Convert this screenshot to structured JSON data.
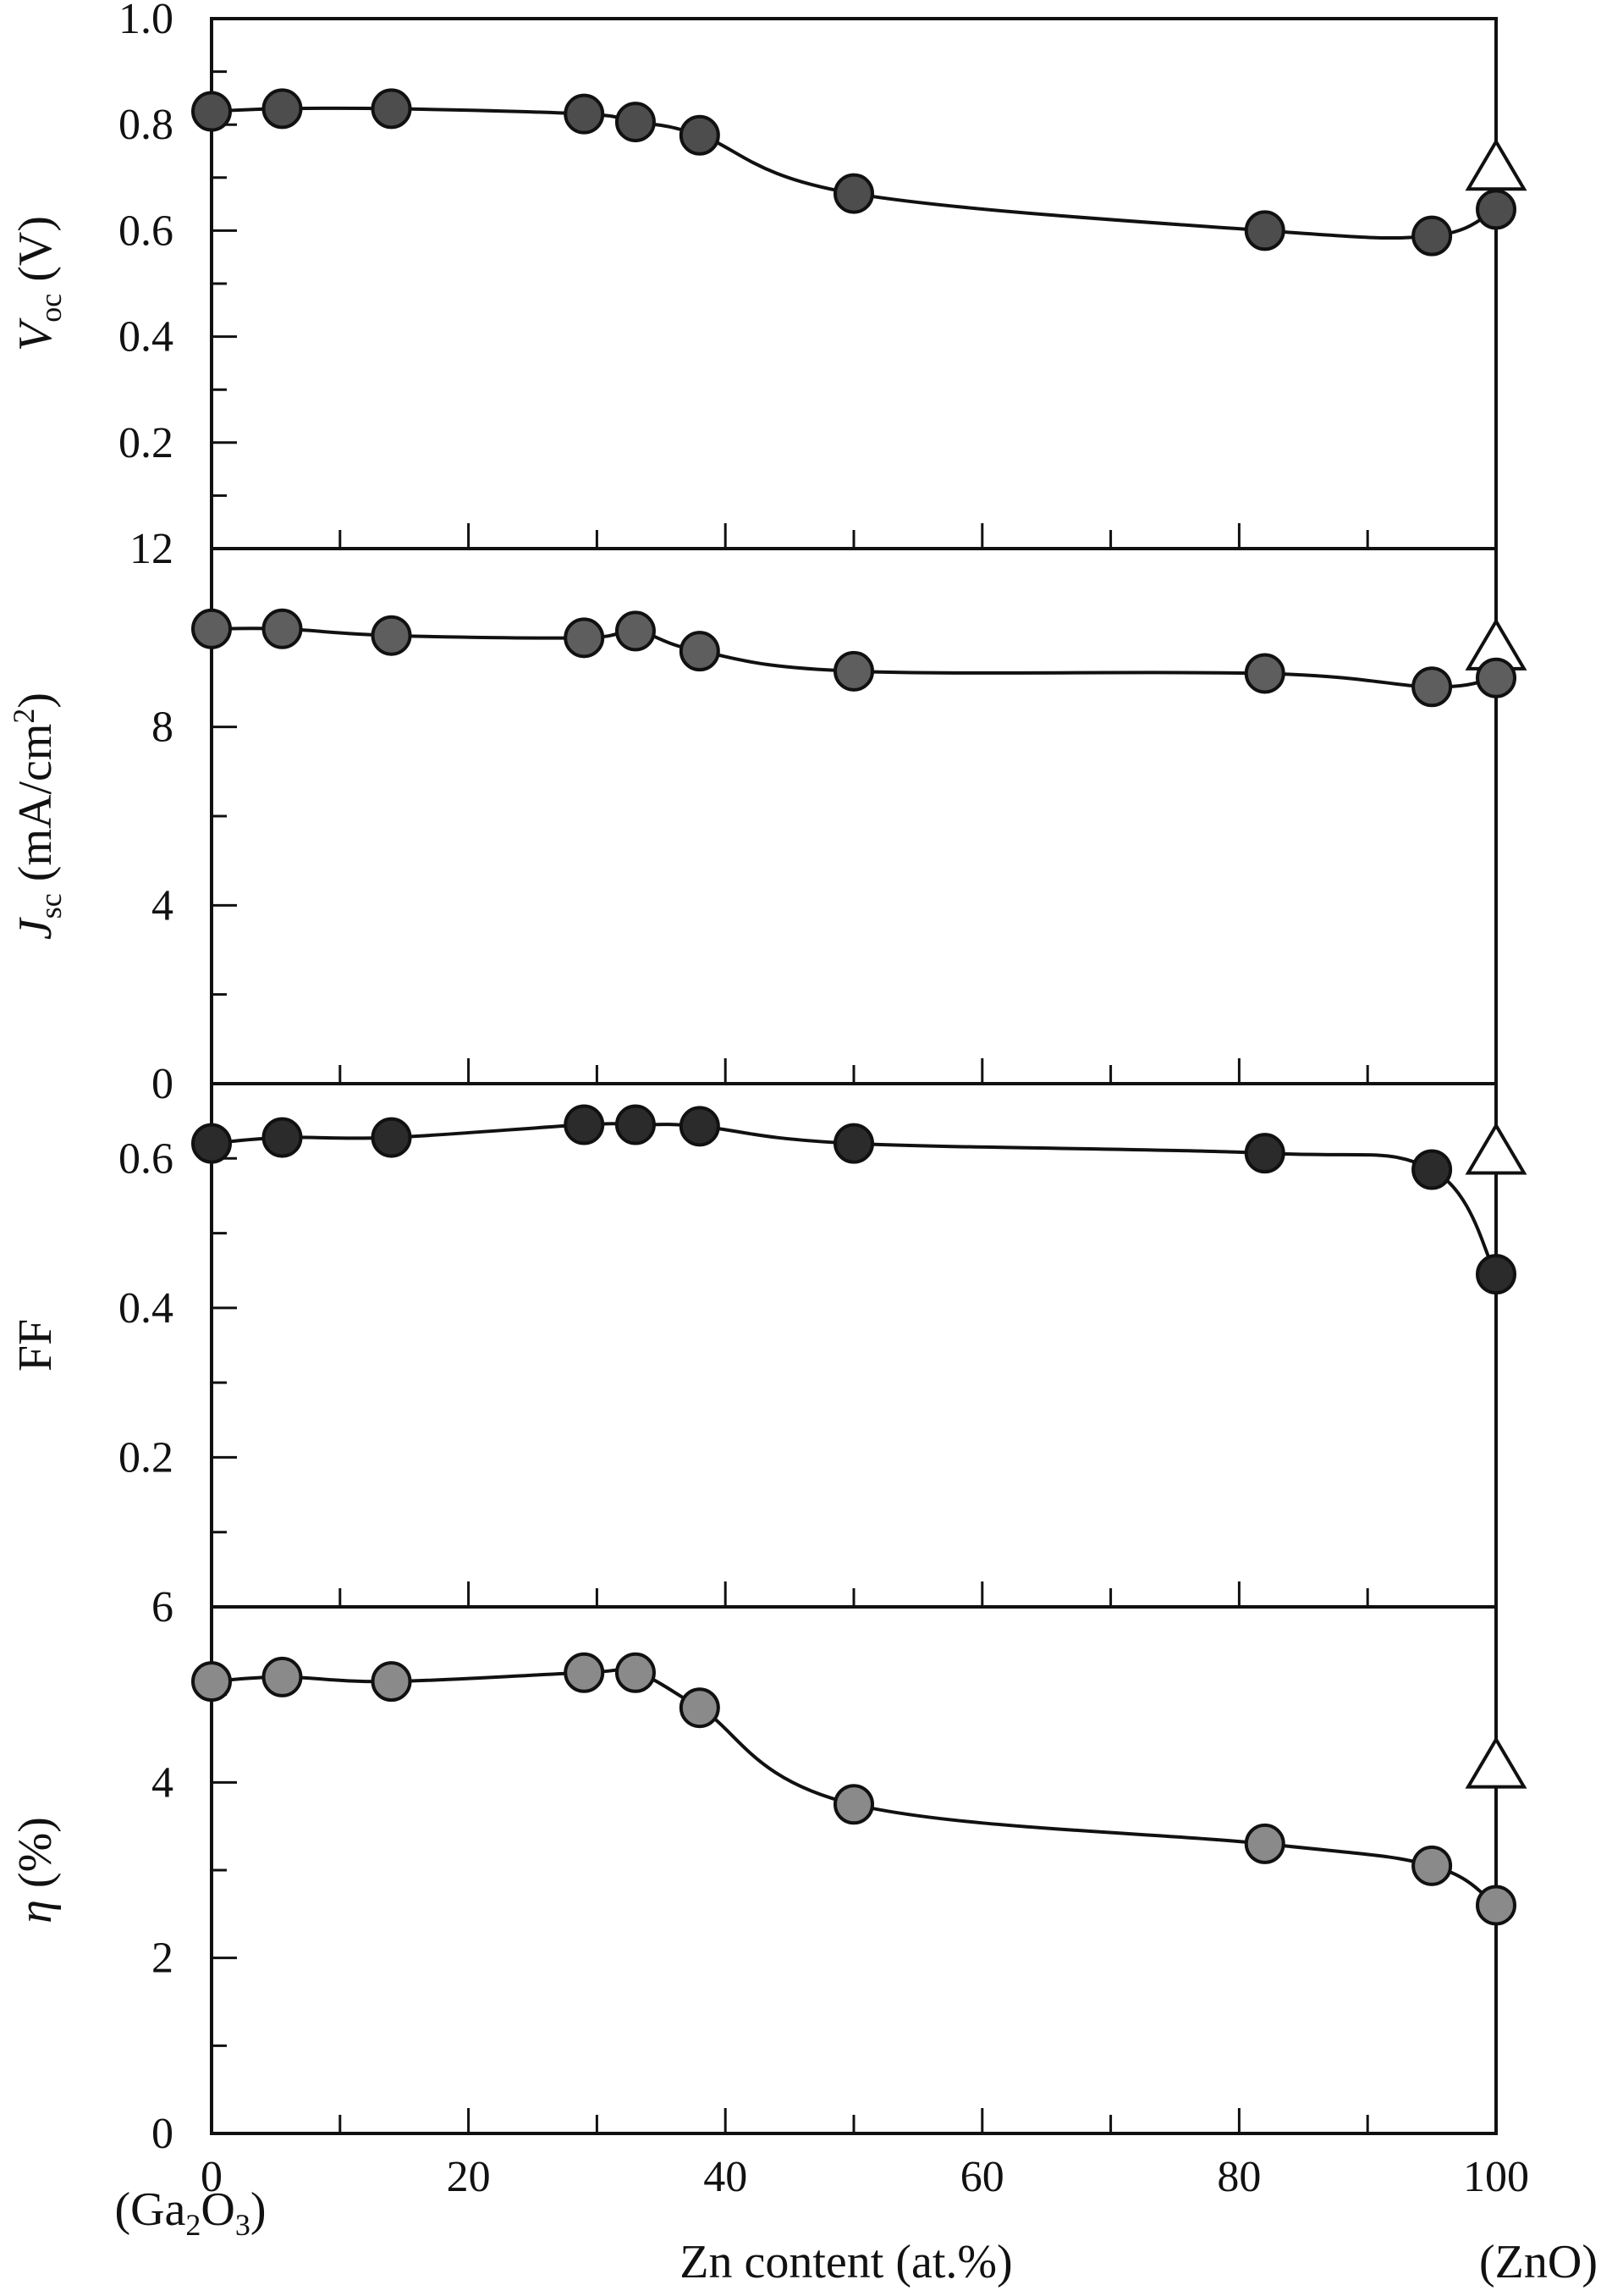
{
  "figure": {
    "xlabel": "Zn content (at.%)",
    "x_left_note": "(Ga2O3)",
    "x_right_note": "(ZnO)",
    "x_ticks": [
      "0",
      "20",
      "40",
      "60",
      "80",
      "100"
    ]
  },
  "chart_data": [
    {
      "type": "line",
      "panel": "Voc",
      "ylabel_symbol": "V",
      "ylabel_sub": "oc",
      "ylabel_rest": " (V)",
      "ylim": [
        0.0,
        1.0
      ],
      "y_ticks": [
        "1.0",
        "0.8",
        "0.6",
        "0.4",
        "0.2"
      ],
      "xlim": [
        0,
        100
      ],
      "grid": false,
      "marker_color": "#4d4d4d",
      "series": [
        {
          "x": [
            0,
            5.5,
            14,
            29,
            33,
            38,
            50,
            82,
            95,
            100
          ],
          "y": [
            0.825,
            0.83,
            0.83,
            0.82,
            0.805,
            0.78,
            0.67,
            0.6,
            0.59,
            0.64
          ]
        }
      ],
      "triangle_point": {
        "x": 100,
        "y": 0.72
      }
    },
    {
      "type": "line",
      "panel": "Jsc",
      "ylabel_symbol": "J",
      "ylabel_sub": "sc",
      "ylabel_rest": " (mA/cm",
      "ylabel_sup": "2",
      "ylabel_close": ")",
      "ylim": [
        0,
        12
      ],
      "y_ticks": [
        "12",
        "8",
        "4",
        "0"
      ],
      "xlim": [
        0,
        100
      ],
      "grid": false,
      "marker_color": "#5e5e5e",
      "series": [
        {
          "x": [
            0,
            5.5,
            14,
            29,
            33,
            38,
            50,
            82,
            95,
            100
          ],
          "y": [
            10.2,
            10.2,
            10.05,
            10.0,
            10.15,
            9.7,
            9.25,
            9.2,
            8.9,
            9.1
          ]
        }
      ],
      "triangle_point": {
        "x": 100,
        "y": 9.8
      }
    },
    {
      "type": "line",
      "panel": "FF",
      "ylabel_symbol": "FF",
      "ylim": [
        0.0,
        0.7
      ],
      "y_ticks": [
        "0.6",
        "0.4",
        "0.2"
      ],
      "xlim": [
        0,
        100
      ],
      "grid": false,
      "marker_color": "#2b2b2b",
      "series": [
        {
          "x": [
            0,
            5.5,
            14,
            29,
            33,
            38,
            50,
            82,
            95,
            100
          ],
          "y": [
            0.62,
            0.628,
            0.628,
            0.645,
            0.645,
            0.643,
            0.62,
            0.607,
            0.585,
            0.445
          ]
        }
      ],
      "triangle_point": {
        "x": 100,
        "y": 0.61
      }
    },
    {
      "type": "line",
      "panel": "eta",
      "ylabel_symbol": "η",
      "ylabel_rest": " (%)",
      "ylim": [
        0,
        6
      ],
      "y_ticks": [
        "6",
        "4",
        "2",
        "0"
      ],
      "xlim": [
        0,
        100
      ],
      "grid": false,
      "marker_color": "#8a8a8a",
      "series": [
        {
          "x": [
            0,
            5.5,
            14,
            29,
            33,
            38,
            50,
            82,
            95,
            100
          ],
          "y": [
            5.15,
            5.2,
            5.15,
            5.25,
            5.25,
            4.85,
            3.75,
            3.3,
            3.05,
            2.6
          ]
        }
      ],
      "triangle_point": {
        "x": 100,
        "y": 4.2
      }
    }
  ]
}
